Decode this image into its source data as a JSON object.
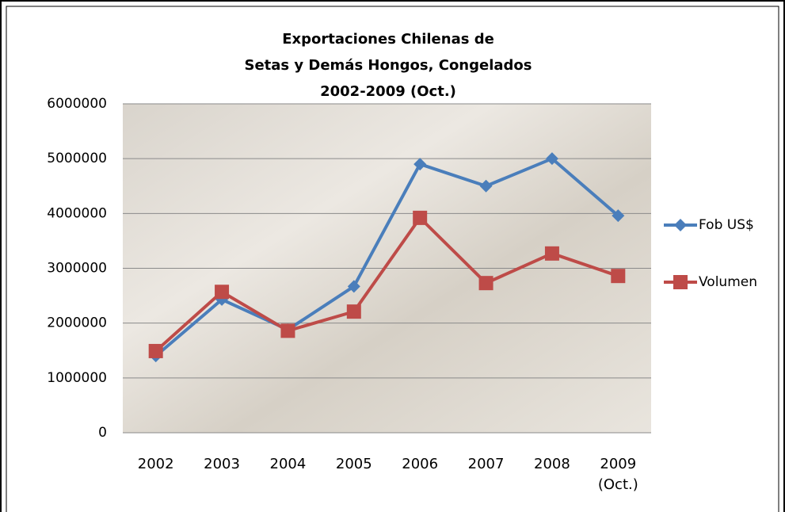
{
  "chart_data": {
    "type": "line",
    "title": [
      "Exportaciones Chilenas de",
      "Setas y Demás Hongos, Congelados",
      "2002-2009 (Oct.)"
    ],
    "categories": [
      "2002",
      "2003",
      "2004",
      "2005",
      "2006",
      "2007",
      "2008",
      "2009 (Oct.)"
    ],
    "series": [
      {
        "name": "Fob US$",
        "color": "#4a7ebb",
        "marker": "diamond",
        "values": [
          1400000,
          2430000,
          1880000,
          2670000,
          4900000,
          4500000,
          5000000,
          3960000
        ]
      },
      {
        "name": "Volumen",
        "color": "#be4b48",
        "marker": "square",
        "values": [
          1490000,
          2570000,
          1860000,
          2210000,
          3920000,
          2730000,
          3270000,
          2860000
        ]
      }
    ],
    "ylim": [
      0,
      6000000
    ],
    "yticks": [
      0,
      1000000,
      2000000,
      3000000,
      4000000,
      5000000,
      6000000
    ],
    "grid": true,
    "legend": "right"
  }
}
